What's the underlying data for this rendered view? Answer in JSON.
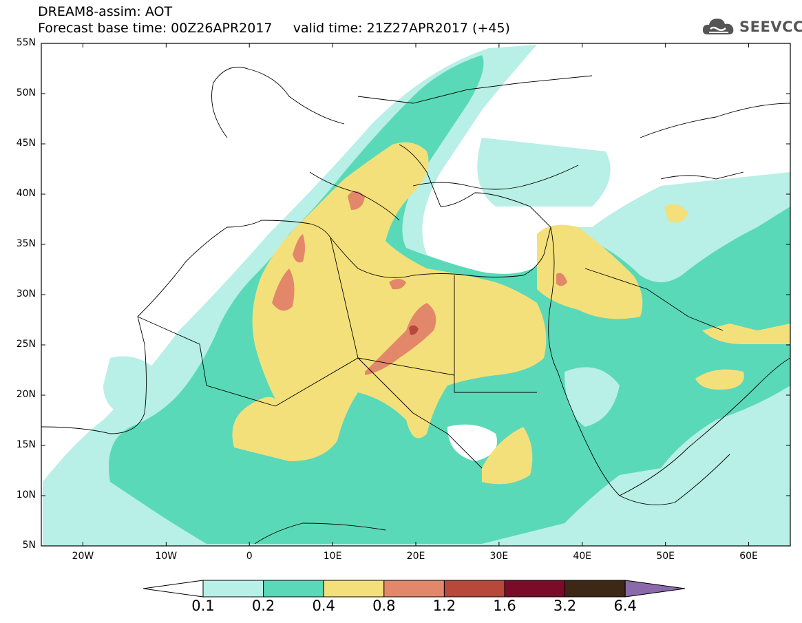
{
  "title": {
    "line1": "DREAM8-assim: AOT",
    "line2": "Forecast base time: 00Z26APR2017     valid time: 21Z27APR2017 (+45)"
  },
  "logo": {
    "text": "SEEVCCC",
    "icon": "cloud-icon"
  },
  "map": {
    "lon_range": [
      -25,
      65
    ],
    "lat_range": [
      5,
      55
    ],
    "x_ticks": [
      {
        "lon": -20,
        "label": "20W"
      },
      {
        "lon": -10,
        "label": "10W"
      },
      {
        "lon": 0,
        "label": "0"
      },
      {
        "lon": 10,
        "label": "10E"
      },
      {
        "lon": 20,
        "label": "20E"
      },
      {
        "lon": 30,
        "label": "30E"
      },
      {
        "lon": 40,
        "label": "40E"
      },
      {
        "lon": 50,
        "label": "50E"
      },
      {
        "lon": 60,
        "label": "60E"
      }
    ],
    "y_ticks": [
      {
        "lat": 55,
        "label": "55N"
      },
      {
        "lat": 50,
        "label": "50N"
      },
      {
        "lat": 45,
        "label": "45N"
      },
      {
        "lat": 40,
        "label": "40N"
      },
      {
        "lat": 35,
        "label": "35N"
      },
      {
        "lat": 30,
        "label": "30N"
      },
      {
        "lat": 25,
        "label": "25N"
      },
      {
        "lat": 20,
        "label": "20N"
      },
      {
        "lat": 15,
        "label": "15N"
      },
      {
        "lat": 10,
        "label": "10N"
      },
      {
        "lat": 5,
        "label": "5N"
      }
    ],
    "colors": {
      "c01": "#b8efe6",
      "c02": "#5ad9b8",
      "c04": "#f4e07a",
      "c08": "#e2876a",
      "c12": "#b8473c",
      "land_line": "#000000"
    }
  },
  "colorbar": {
    "levels": [
      "0.1",
      "0.2",
      "0.4",
      "0.8",
      "1.2",
      "1.6",
      "3.2",
      "6.4"
    ],
    "colors": [
      "#ffffff",
      "#b8efe6",
      "#5ad9b8",
      "#f4e07a",
      "#e2876a",
      "#b8473c",
      "#7a0c2a",
      "#3d2717",
      "#8a6aa8"
    ]
  }
}
